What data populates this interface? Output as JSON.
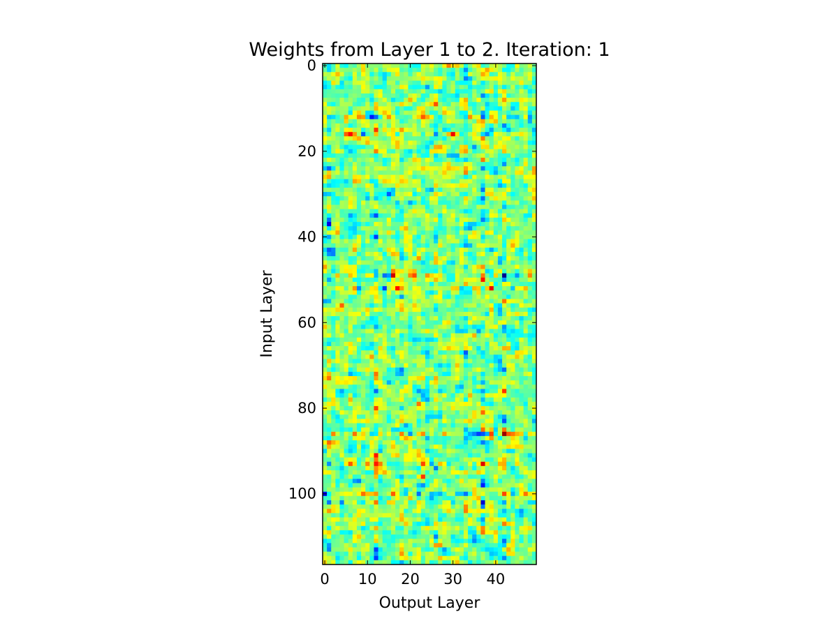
{
  "chart_data": {
    "type": "heatmap",
    "title": "Weights from Layer 1 to 2. Iteration: 1",
    "xlabel": "Output Layer",
    "ylabel": "Input Layer",
    "n_cols": 50,
    "n_rows": 117,
    "xlim": [
      -0.5,
      49.5
    ],
    "ylim": [
      116.5,
      -0.5
    ],
    "xticks": [
      0,
      10,
      20,
      30,
      40
    ],
    "yticks": [
      0,
      20,
      40,
      60,
      80,
      100
    ],
    "colormap": "jet",
    "value_range": [
      -1,
      1
    ],
    "value_description": "random weight matrix, mostly near zero (cyan/green) with scattered strong positive (red) and negative (blue) entries",
    "high_variance_columns": [
      1,
      12,
      18,
      26,
      33,
      37,
      42
    ],
    "high_variance_rows": [
      12,
      16,
      49,
      52,
      86,
      93,
      100,
      102
    ]
  },
  "colors": {
    "jet_0": "#00007f",
    "jet_1": "#0000ff",
    "jet_2": "#007fff",
    "jet_3": "#00ffff",
    "jet_4": "#7fff7f",
    "jet_5": "#ffff00",
    "jet_6": "#ff7f00",
    "jet_7": "#ff0000",
    "jet_8": "#7f0000"
  }
}
